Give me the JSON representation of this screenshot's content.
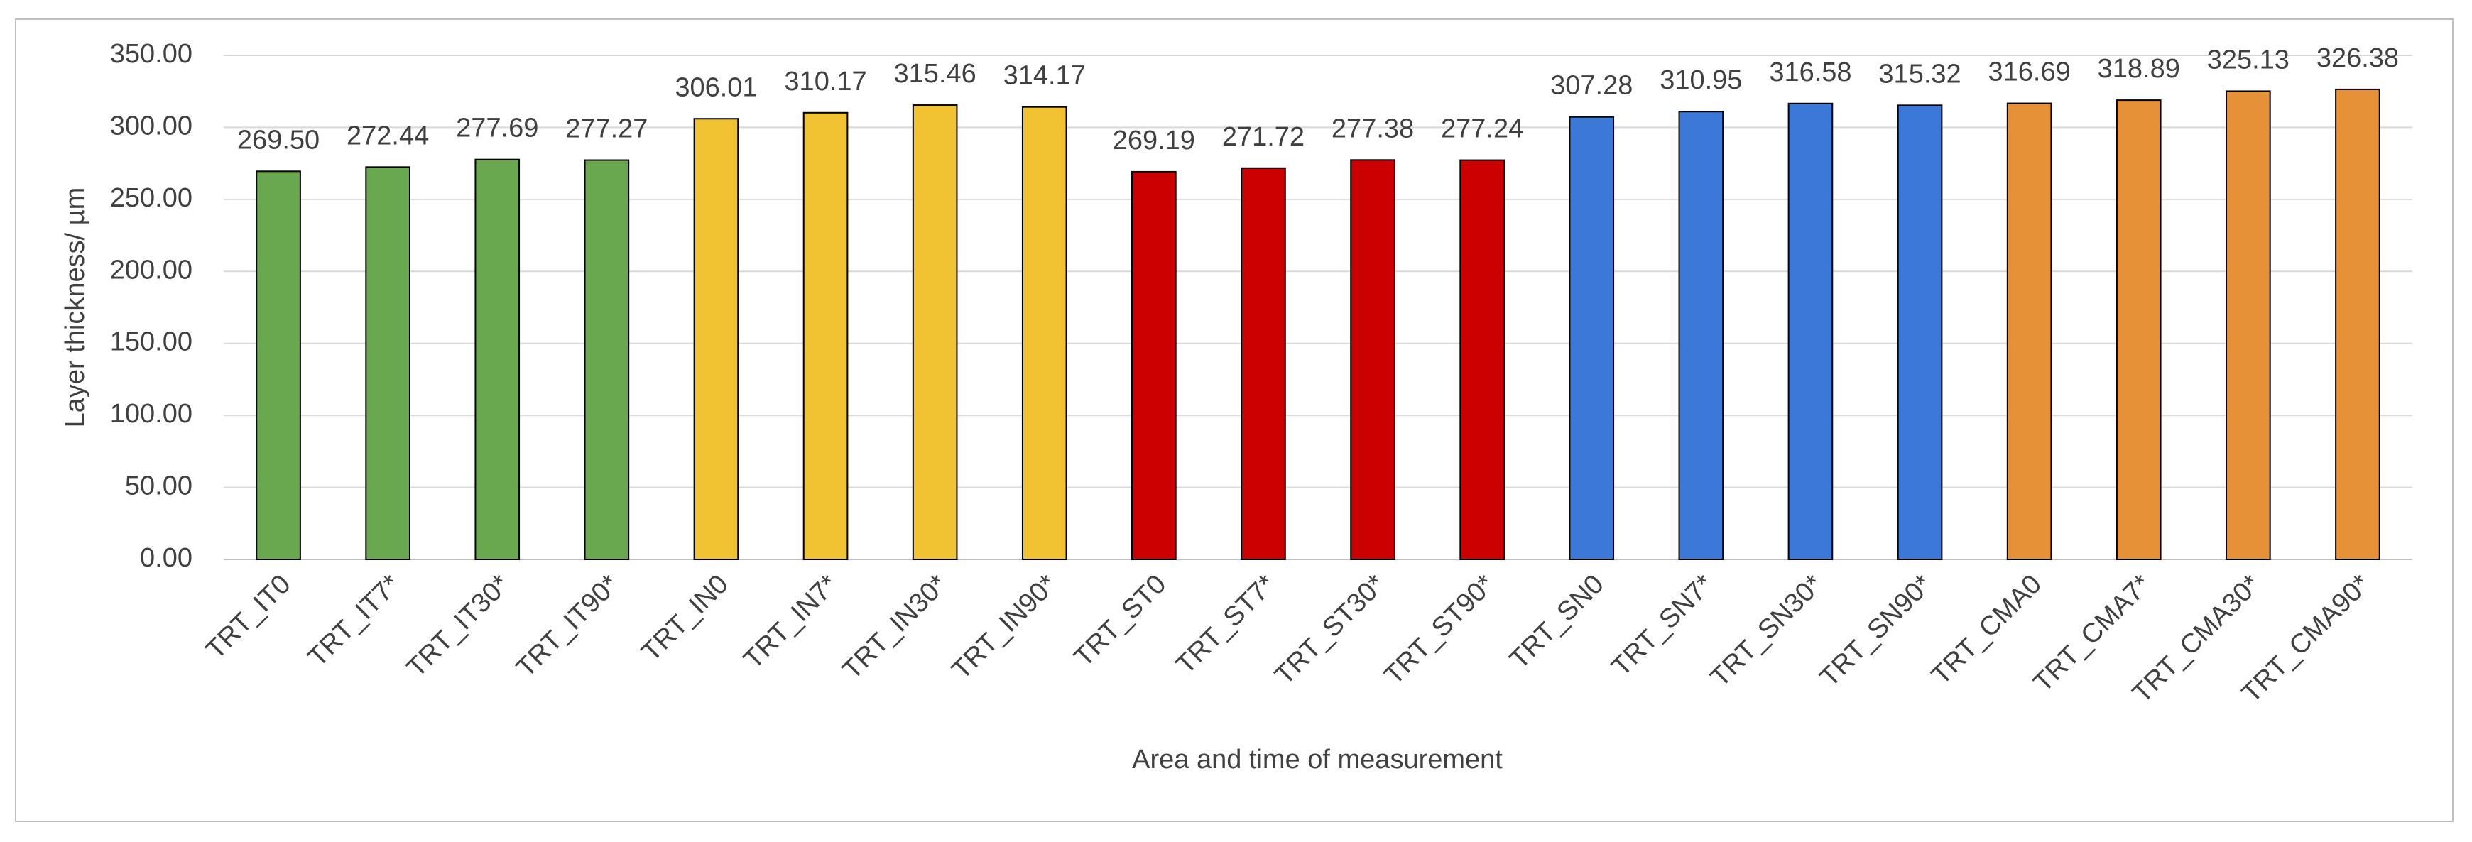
{
  "chart_data": {
    "type": "bar",
    "x_label": "Area and time of measurement",
    "y_label": "Layer thickness/ µm",
    "categories": [
      "TRT_IT0",
      "TRT_IT7*",
      "TRT_IT30*",
      "TRT_IT90*",
      "TRT_IN0",
      "TRT_IN7*",
      "TRT_IN30*",
      "TRT_IN90*",
      "TRT_ST0",
      "TRT_ST7*",
      "TRT_ST30*",
      "TRT_ST90*",
      "TRT_SN0",
      "TRT_SN7*",
      "TRT_SN30*",
      "TRT_SN90*",
      "TRT_CMA0",
      "TRT_CMA7*",
      "TRT_CMA30*",
      "TRT_CMA90*"
    ],
    "values": [
      269.5,
      272.44,
      277.69,
      277.27,
      306.01,
      310.17,
      315.46,
      314.17,
      269.19,
      271.72,
      277.38,
      277.24,
      307.28,
      310.95,
      316.58,
      315.32,
      316.69,
      318.89,
      325.13,
      326.38
    ],
    "value_labels": [
      "269.50",
      "272.44",
      "277.69",
      "277.27",
      "306.01",
      "310.17",
      "315.46",
      "314.17",
      "269.19",
      "271.72",
      "277.38",
      "277.24",
      "307.28",
      "310.95",
      "316.58",
      "315.32",
      "316.69",
      "318.89",
      "325.13",
      "326.38"
    ],
    "colors": [
      "#6aa84f",
      "#6aa84f",
      "#6aa84f",
      "#6aa84f",
      "#f1c232",
      "#f1c232",
      "#f1c232",
      "#f1c232",
      "#cc0000",
      "#cc0000",
      "#cc0000",
      "#cc0000",
      "#3c78d8",
      "#3c78d8",
      "#3c78d8",
      "#3c78d8",
      "#e69138",
      "#e69138",
      "#e69138",
      "#e69138"
    ],
    "ylim": [
      0,
      350
    ],
    "yticks": [
      {
        "value": 0,
        "label": "0.00"
      },
      {
        "value": 50,
        "label": "50.00"
      },
      {
        "value": 100,
        "label": "100.00"
      },
      {
        "value": 150,
        "label": "150.00"
      },
      {
        "value": 200,
        "label": "200.00"
      },
      {
        "value": 250,
        "label": "250.00"
      },
      {
        "value": 300,
        "label": "300.00"
      },
      {
        "value": 350,
        "label": "350.00"
      }
    ],
    "grid": true
  }
}
